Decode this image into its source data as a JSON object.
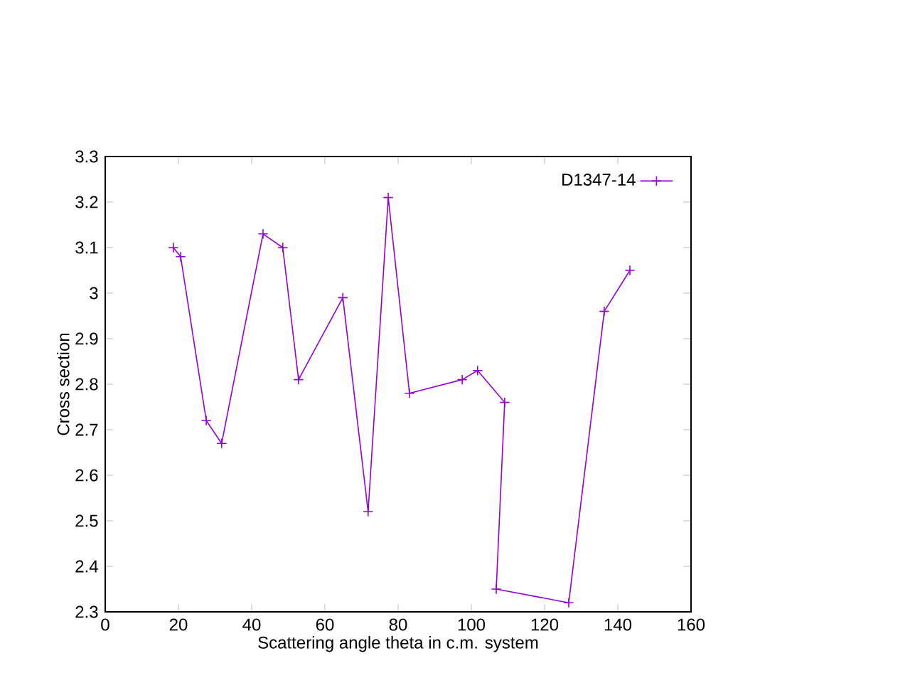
{
  "chart_data": {
    "type": "line",
    "xlabel": "Scattering angle theta in c.m. system",
    "ylabel": "Cross section",
    "x": [
      18.6,
      20.6,
      27.6,
      31.8,
      43.1,
      48.5,
      52.8,
      64.9,
      71.8,
      77.3,
      83.1,
      97.5,
      101.7,
      109.1,
      106.8,
      126.6,
      136.3,
      143.3
    ],
    "series": [
      {
        "name": "D1347-14",
        "color": "#9400d3",
        "values": [
          3.1,
          3.08,
          2.72,
          2.67,
          3.13,
          3.1,
          2.81,
          2.99,
          2.52,
          3.21,
          2.78,
          2.81,
          2.83,
          2.76,
          2.35,
          2.32,
          2.96,
          3.05
        ]
      }
    ],
    "xlim": [
      0,
      160
    ],
    "ylim": [
      2.3,
      3.3
    ],
    "xticks": [
      0,
      20,
      40,
      60,
      80,
      100,
      120,
      140,
      160
    ],
    "yticks": [
      2.3,
      2.4,
      2.5,
      2.6,
      2.7,
      2.8,
      2.9,
      3,
      3.1,
      3.2,
      3.3
    ],
    "legend": "top right",
    "marker": "cross",
    "line_style": "solid",
    "grid": false
  }
}
